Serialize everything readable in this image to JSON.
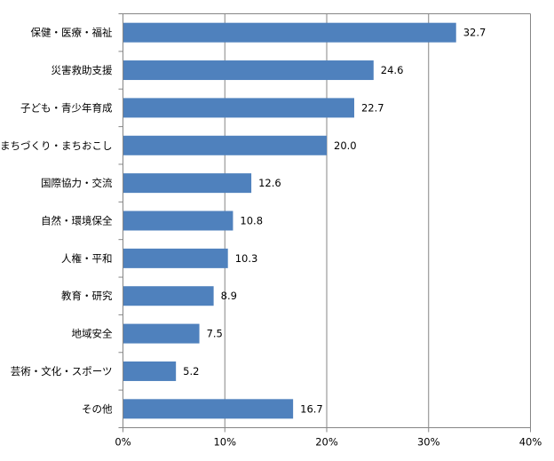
{
  "chart_data": {
    "type": "bar",
    "orientation": "horizontal",
    "categories": [
      "保健・医療・福祉",
      "災害救助支援",
      "子ども・青少年育成",
      "まちづくり・まちおこし",
      "国際協力・交流",
      "自然・環境保全",
      "人権・平和",
      "教育・研究",
      "地域安全",
      "芸術・文化・スポーツ",
      "その他"
    ],
    "values": [
      32.7,
      24.6,
      22.7,
      20.0,
      12.6,
      10.8,
      10.3,
      8.9,
      7.5,
      5.2,
      16.7
    ],
    "value_labels": [
      "32.7",
      "24.6",
      "22.7",
      "20.0",
      "12.6",
      "10.8",
      "10.3",
      "8.9",
      "7.5",
      "5.2",
      "16.7"
    ],
    "xlim": [
      0,
      40
    ],
    "xticks": [
      "0%",
      "10%",
      "20%",
      "30%",
      "40%"
    ],
    "grid": true,
    "legend": "none",
    "bar_color": "#4f81bd",
    "grid_color": "#868686"
  }
}
